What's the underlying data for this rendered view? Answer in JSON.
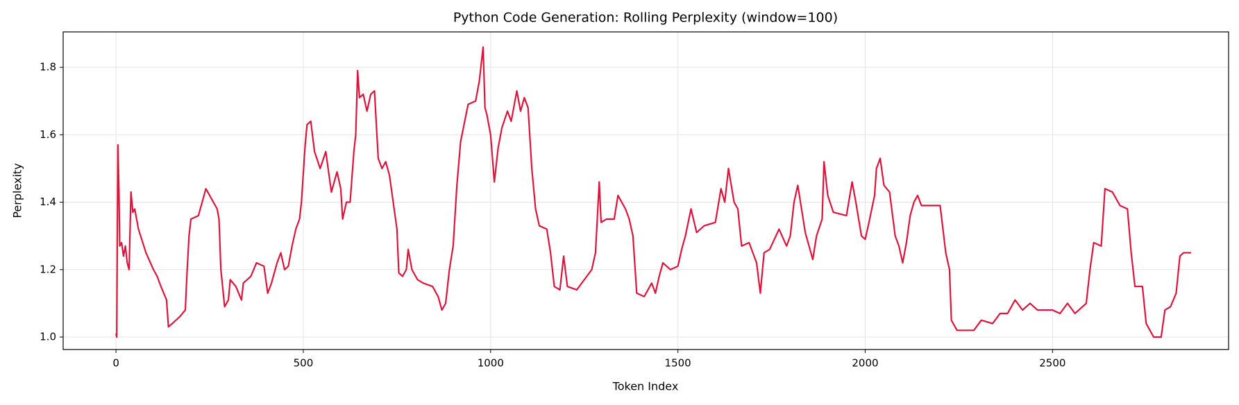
{
  "chart_data": {
    "type": "line",
    "title": "Python Code Generation: Rolling Perplexity (window=100)",
    "xlabel": "Token Index",
    "ylabel": "Perplexity",
    "x": [
      0,
      2,
      5,
      8,
      10,
      15,
      20,
      25,
      30,
      35,
      40,
      45,
      50,
      60,
      80,
      100,
      110,
      120,
      135,
      140,
      150,
      170,
      185,
      190,
      195,
      200,
      220,
      235,
      240,
      250,
      270,
      275,
      280,
      290,
      300,
      305,
      320,
      335,
      340,
      360,
      375,
      395,
      405,
      415,
      430,
      440,
      450,
      460,
      470,
      480,
      490,
      495,
      505,
      510,
      520,
      530,
      545,
      560,
      575,
      590,
      600,
      605,
      615,
      625,
      635,
      640,
      645,
      650,
      660,
      670,
      680,
      690,
      700,
      710,
      720,
      730,
      740,
      750,
      755,
      765,
      775,
      780,
      790,
      805,
      820,
      845,
      860,
      870,
      880,
      890,
      900,
      910,
      920,
      940,
      960,
      970,
      980,
      985,
      990,
      1000,
      1010,
      1020,
      1030,
      1045,
      1055,
      1070,
      1080,
      1090,
      1100,
      1110,
      1120,
      1130,
      1150,
      1160,
      1170,
      1185,
      1195,
      1205,
      1230,
      1250,
      1270,
      1280,
      1290,
      1295,
      1310,
      1330,
      1340,
      1360,
      1370,
      1380,
      1390,
      1410,
      1430,
      1440,
      1450,
      1460,
      1480,
      1500,
      1510,
      1520,
      1535,
      1550,
      1570,
      1600,
      1615,
      1625,
      1635,
      1650,
      1660,
      1670,
      1690,
      1710,
      1720,
      1730,
      1745,
      1770,
      1790,
      1800,
      1810,
      1820,
      1840,
      1860,
      1870,
      1885,
      1890,
      1900,
      1915,
      1950,
      1965,
      1975,
      1990,
      2000,
      2010,
      2025,
      2030,
      2040,
      2050,
      2065,
      2080,
      2090,
      2100,
      2110,
      2120,
      2130,
      2140,
      2150,
      2180,
      2200,
      2215,
      2225,
      2230,
      2245,
      2260,
      2290,
      2310,
      2340,
      2360,
      2380,
      2400,
      2420,
      2440,
      2460,
      2500,
      2520,
      2540,
      2560,
      2590,
      2600,
      2610,
      2630,
      2640,
      2660,
      2680,
      2700,
      2710,
      2720,
      2740,
      2750,
      2770,
      2790,
      2800,
      2815,
      2830,
      2840,
      2850,
      2870
    ],
    "series": [
      {
        "name": "Rolling Perplexity",
        "color": "#dc143c",
        "values": [
          1.01,
          1.0,
          1.57,
          1.43,
          1.27,
          1.28,
          1.24,
          1.27,
          1.22,
          1.2,
          1.43,
          1.37,
          1.38,
          1.32,
          1.25,
          1.2,
          1.18,
          1.15,
          1.11,
          1.03,
          1.04,
          1.06,
          1.08,
          1.2,
          1.3,
          1.35,
          1.36,
          1.42,
          1.44,
          1.42,
          1.38,
          1.35,
          1.2,
          1.09,
          1.11,
          1.17,
          1.15,
          1.11,
          1.16,
          1.18,
          1.22,
          1.21,
          1.13,
          1.16,
          1.22,
          1.25,
          1.2,
          1.21,
          1.27,
          1.32,
          1.35,
          1.4,
          1.57,
          1.63,
          1.64,
          1.55,
          1.5,
          1.55,
          1.43,
          1.49,
          1.44,
          1.35,
          1.4,
          1.4,
          1.55,
          1.6,
          1.79,
          1.71,
          1.72,
          1.67,
          1.72,
          1.73,
          1.53,
          1.5,
          1.52,
          1.48,
          1.4,
          1.32,
          1.19,
          1.18,
          1.2,
          1.26,
          1.2,
          1.17,
          1.16,
          1.15,
          1.12,
          1.08,
          1.1,
          1.2,
          1.27,
          1.45,
          1.58,
          1.69,
          1.7,
          1.76,
          1.86,
          1.68,
          1.66,
          1.6,
          1.46,
          1.56,
          1.62,
          1.67,
          1.64,
          1.73,
          1.67,
          1.71,
          1.68,
          1.5,
          1.38,
          1.33,
          1.32,
          1.25,
          1.15,
          1.14,
          1.24,
          1.15,
          1.14,
          1.17,
          1.2,
          1.25,
          1.46,
          1.34,
          1.35,
          1.35,
          1.42,
          1.38,
          1.35,
          1.3,
          1.13,
          1.12,
          1.16,
          1.13,
          1.18,
          1.22,
          1.2,
          1.21,
          1.26,
          1.3,
          1.38,
          1.31,
          1.33,
          1.34,
          1.44,
          1.4,
          1.5,
          1.4,
          1.38,
          1.27,
          1.28,
          1.22,
          1.13,
          1.25,
          1.26,
          1.32,
          1.27,
          1.3,
          1.4,
          1.45,
          1.31,
          1.23,
          1.3,
          1.35,
          1.52,
          1.42,
          1.37,
          1.36,
          1.46,
          1.4,
          1.3,
          1.29,
          1.34,
          1.42,
          1.5,
          1.53,
          1.45,
          1.43,
          1.3,
          1.27,
          1.22,
          1.28,
          1.36,
          1.4,
          1.42,
          1.39,
          1.39,
          1.39,
          1.25,
          1.2,
          1.05,
          1.02,
          1.02,
          1.02,
          1.05,
          1.04,
          1.07,
          1.07,
          1.11,
          1.08,
          1.1,
          1.08,
          1.08,
          1.07,
          1.1,
          1.07,
          1.1,
          1.2,
          1.28,
          1.27,
          1.44,
          1.43,
          1.39,
          1.38,
          1.25,
          1.15,
          1.15,
          1.04,
          1.0,
          1.0,
          1.08,
          1.09,
          1.13,
          1.24,
          1.25,
          1.25
        ]
      }
    ],
    "xlim": [
      -141,
      2970
    ],
    "xticks": [
      0,
      500,
      1000,
      1500,
      2000,
      2500
    ],
    "ylim": [
      0.963,
      1.905
    ],
    "yticks": [
      {
        "value": 1,
        "label": "1.0"
      },
      1.2,
      1.4,
      1.6,
      1.8
    ],
    "grid": true
  }
}
